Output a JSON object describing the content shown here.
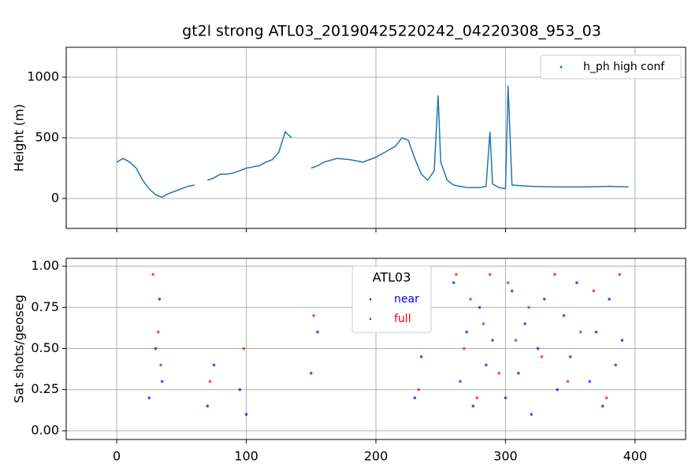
{
  "chart_data": [
    {
      "type": "line",
      "title": "gt2l strong ATL03_20190425220242_04220308_953_03",
      "ylabel": "Height (m)",
      "xlim": [
        -39,
        439
      ],
      "xticks": [
        0,
        100,
        200,
        300,
        400
      ],
      "ylim": [
        -247,
        1247
      ],
      "yticks": [
        0,
        500,
        1000
      ],
      "grid": true,
      "legend": "upper right",
      "x": [
        0,
        5,
        10,
        15,
        20,
        25,
        30,
        35,
        40,
        45,
        50,
        55,
        60,
        65,
        70,
        75,
        80,
        85,
        90,
        95,
        100,
        105,
        110,
        115,
        120,
        125,
        130,
        135,
        140,
        150,
        155,
        160,
        170,
        180,
        190,
        200,
        210,
        215,
        220,
        225,
        230,
        235,
        240,
        245,
        248,
        250,
        255,
        260,
        270,
        280,
        285,
        288,
        290,
        295,
        300,
        302,
        305,
        320,
        340,
        360,
        380,
        395
      ],
      "series": [
        {
          "name": "h_ph high conf",
          "color": "#1f77b4",
          "values": [
            300,
            330,
            300,
            250,
            150,
            80,
            30,
            10,
            40,
            60,
            80,
            100,
            110,
            null,
            150,
            170,
            200,
            200,
            210,
            230,
            250,
            260,
            270,
            300,
            320,
            380,
            550,
            500,
            null,
            250,
            270,
            300,
            330,
            320,
            300,
            340,
            400,
            430,
            500,
            480,
            330,
            200,
            150,
            230,
            850,
            300,
            150,
            110,
            90,
            90,
            100,
            550,
            120,
            90,
            80,
            930,
            110,
            100,
            95,
            95,
            100,
            95
          ]
        }
      ]
    },
    {
      "type": "scatter",
      "ylabel": "Sat shots/geoseg",
      "xlim": [
        -39,
        439
      ],
      "xticks": [
        0,
        100,
        200,
        300,
        400
      ],
      "ylim": [
        -0.053,
        1.048
      ],
      "yticks": [
        {
          "value": 0,
          "label": "0.00"
        },
        {
          "value": 0.25,
          "label": "0.25"
        },
        {
          "value": 0.5,
          "label": "0.50"
        },
        {
          "value": 0.75,
          "label": "0.75"
        },
        {
          "value": 1,
          "label": "1.00"
        }
      ],
      "grid": true,
      "legend": "upper center",
      "legend_title": "ATL03",
      "series": [
        {
          "name": "near",
          "color": "#0000ff",
          "x": [
            25,
            30,
            33,
            35,
            70,
            75,
            95,
            100,
            150,
            155,
            230,
            235,
            260,
            265,
            270,
            275,
            280,
            285,
            290,
            300,
            305,
            310,
            315,
            320,
            325,
            330,
            340,
            345,
            350,
            355,
            365,
            370,
            375,
            380,
            385,
            390
          ],
          "values": [
            0.2,
            0.5,
            0.8,
            0.3,
            0.15,
            0.4,
            0.25,
            0.1,
            0.35,
            0.6,
            0.2,
            0.45,
            0.9,
            0.3,
            0.6,
            0.15,
            0.75,
            0.4,
            0.55,
            0.2,
            0.85,
            0.35,
            0.65,
            0.1,
            0.5,
            0.8,
            0.25,
            0.7,
            0.45,
            0.9,
            0.3,
            0.6,
            0.15,
            0.8,
            0.4,
            0.55
          ]
        },
        {
          "name": "full",
          "color": "#ff0000",
          "x": [
            28,
            32,
            34,
            72,
            98,
            152,
            233,
            262,
            268,
            273,
            278,
            283,
            288,
            295,
            302,
            308,
            318,
            328,
            338,
            348,
            358,
            368,
            378,
            388
          ],
          "values": [
            0.95,
            0.6,
            0.4,
            0.3,
            0.5,
            0.7,
            0.25,
            0.95,
            0.5,
            0.8,
            0.2,
            0.65,
            0.95,
            0.35,
            0.9,
            0.55,
            0.75,
            0.45,
            0.95,
            0.3,
            0.6,
            0.85,
            0.2,
            0.95
          ]
        }
      ]
    }
  ]
}
